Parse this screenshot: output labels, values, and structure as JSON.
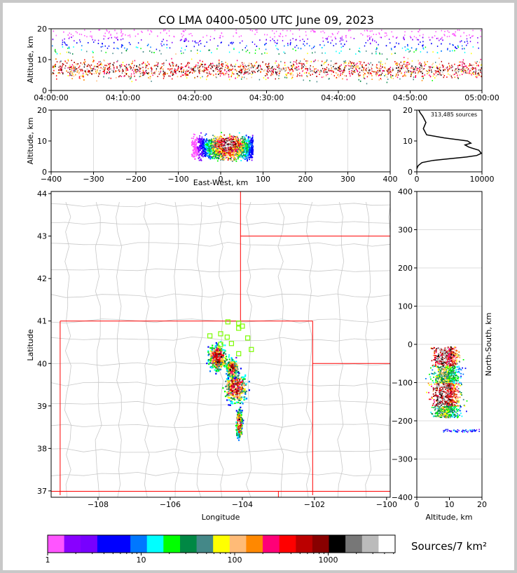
{
  "title": "CO LMA 0400-0500 UTC June 09, 2023",
  "colorbar_label": "Sources/7 km²",
  "chart_data": [
    {
      "type": "heatmap",
      "id": "time-altitude",
      "ylabel": "Altitude, km",
      "xlim": [
        "04:00:00",
        "05:00:00"
      ],
      "ylim": [
        0,
        20
      ],
      "x_ticks": [
        "04:00:00",
        "04:10:00",
        "04:20:00",
        "04:30:00",
        "04:40:00",
        "04:50:00",
        "05:00:00"
      ],
      "y_ticks": [
        "0",
        "10",
        "20"
      ]
    },
    {
      "type": "heatmap",
      "id": "eastwest-altitude",
      "xlabel": "East-West, km",
      "ylabel": "Altitude, km",
      "xlim": [
        -400,
        400
      ],
      "ylim": [
        0,
        20
      ],
      "x_ticks": [
        "−400",
        "−300",
        "−200",
        "−100",
        "0",
        "100",
        "200",
        "300",
        "400"
      ],
      "y_ticks": [
        "0",
        "10",
        "20"
      ]
    },
    {
      "type": "line",
      "id": "altitude-histogram",
      "annotation": "313,485 sources",
      "xlim": [
        0,
        10000
      ],
      "ylim": [
        0,
        20
      ],
      "x_ticks": [
        "0",
        "10000"
      ],
      "y_ticks": [
        "0",
        "10",
        "20"
      ],
      "x": [
        0,
        200,
        800,
        2500,
        5200,
        7600,
        9200,
        9900,
        9500,
        8000,
        7400,
        8300,
        7800,
        4200,
        1500,
        1000,
        1400,
        900,
        500,
        300
      ],
      "y": [
        1,
        2,
        3,
        3.7,
        4.3,
        4.8,
        5.3,
        6,
        7,
        8,
        8.7,
        9.3,
        10,
        11,
        12,
        14,
        16,
        18,
        19.2,
        20
      ]
    },
    {
      "type": "heatmap",
      "id": "plan-view-map",
      "xlabel": "Longitude",
      "ylabel": "Latitude",
      "xlim": [
        -109.3,
        -99.9
      ],
      "ylim": [
        36.85,
        44.05
      ],
      "x_ticks": [
        "−108",
        "−106",
        "−104",
        "−102",
        "−100"
      ],
      "y_ticks": [
        "37",
        "38",
        "39",
        "40",
        "41",
        "42",
        "43",
        "44"
      ]
    },
    {
      "type": "heatmap",
      "id": "altitude-northsouth",
      "xlabel": "Altitude, km",
      "ylabel": "North-South, km",
      "xlim": [
        0,
        20
      ],
      "ylim": [
        -400,
        400
      ],
      "x_ticks": [
        "0",
        "10",
        "20"
      ],
      "y_ticks": [
        "−400",
        "−300",
        "−200",
        "−100",
        "0",
        "100",
        "200",
        "300",
        "400"
      ]
    },
    {
      "type": "bar",
      "id": "colorbar",
      "scale": "log",
      "tick_labels": [
        "1",
        "10",
        "100",
        "1000"
      ],
      "colors": [
        "#ff55ff",
        "#8800ff",
        "#7700ff",
        "#0000ff",
        "#0000ff",
        "#0077ff",
        "#00ffff",
        "#00ff00",
        "#008844",
        "#448888",
        "#ffff00",
        "#ffbb77",
        "#ff8800",
        "#ff0077",
        "#ff0000",
        "#bb0000",
        "#880000",
        "#000000",
        "#777777",
        "#bbbbbb",
        "#ffffff"
      ]
    }
  ],
  "colors": {
    "state_border": "#ff0000",
    "county_border": "#c8c8c8",
    "station_marker": "#7cfc00",
    "grid": "#dddddd"
  }
}
